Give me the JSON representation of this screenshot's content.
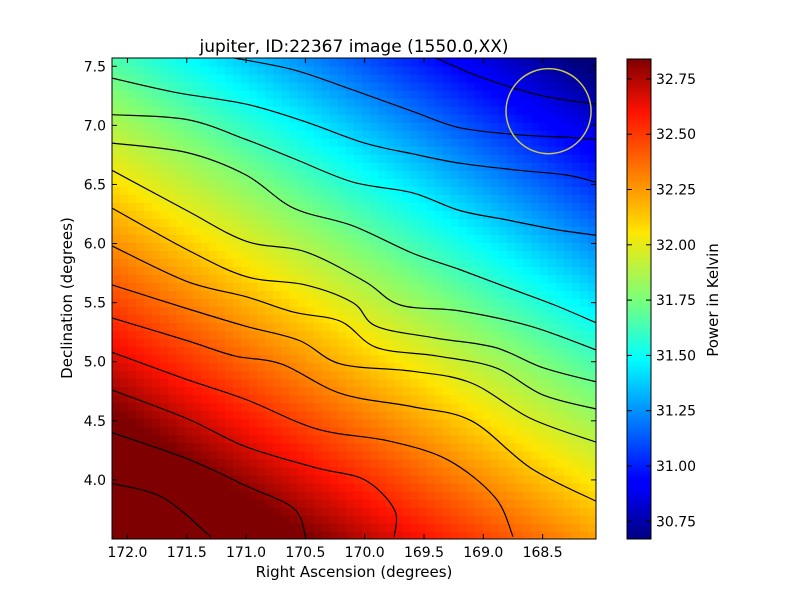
{
  "chart_data": {
    "type": "heatmap",
    "title": "jupiter, ID:22367 image (1550.0,XX)",
    "xlabel": "Right Ascension (degrees)",
    "ylabel": "Declination (degrees)",
    "colorbar_label": "Power in Kelvin",
    "colormap": "jet",
    "xlim": [
      172.13,
      168.05
    ],
    "ylim": [
      3.5,
      7.57
    ],
    "x_ticks": [
      172.0,
      171.5,
      171.0,
      170.5,
      170.0,
      169.5,
      169.0,
      168.5
    ],
    "x_tick_labels": [
      "172.0",
      "171.5",
      "171.0",
      "170.5",
      "170.0",
      "169.5",
      "169.0",
      "168.5"
    ],
    "y_ticks": [
      4.0,
      4.5,
      5.0,
      5.5,
      6.0,
      6.5,
      7.0,
      7.5
    ],
    "y_tick_labels": [
      "4.0",
      "4.5",
      "5.0",
      "5.5",
      "6.0",
      "6.5",
      "7.0",
      "7.5"
    ],
    "colorbar_range": [
      30.67,
      32.84
    ],
    "colorbar_ticks": [
      30.75,
      31.0,
      31.25,
      31.5,
      31.75,
      32.0,
      32.25,
      32.5,
      32.75
    ],
    "colorbar_tick_labels": [
      "30.75",
      "31.00",
      "31.25",
      "31.50",
      "31.75",
      "32.00",
      "32.25",
      "32.50",
      "32.75"
    ],
    "contour_lines": [
      {
        "points": [
          [
            172.13,
            3.97
          ],
          [
            171.7,
            3.85
          ],
          [
            171.3,
            3.52
          ]
        ]
      },
      {
        "points": [
          [
            172.13,
            4.4
          ],
          [
            171.5,
            4.18
          ],
          [
            171.0,
            3.95
          ],
          [
            170.6,
            3.76
          ],
          [
            170.5,
            3.53
          ]
        ]
      },
      {
        "points": [
          [
            172.13,
            4.76
          ],
          [
            171.5,
            4.52
          ],
          [
            171.0,
            4.28
          ],
          [
            170.4,
            4.1
          ],
          [
            170.0,
            4.0
          ],
          [
            169.75,
            3.75
          ],
          [
            169.75,
            3.52
          ]
        ]
      },
      {
        "points": [
          [
            172.13,
            5.08
          ],
          [
            171.5,
            4.85
          ],
          [
            171.0,
            4.68
          ],
          [
            170.4,
            4.43
          ],
          [
            169.8,
            4.33
          ],
          [
            169.3,
            4.17
          ],
          [
            168.9,
            3.85
          ],
          [
            168.75,
            3.52
          ]
        ]
      },
      {
        "points": [
          [
            172.13,
            5.37
          ],
          [
            171.5,
            5.18
          ],
          [
            171.1,
            5.05
          ],
          [
            170.7,
            4.98
          ],
          [
            170.2,
            4.73
          ],
          [
            169.6,
            4.62
          ],
          [
            169.1,
            4.5
          ],
          [
            168.6,
            4.1
          ],
          [
            168.05,
            3.82
          ]
        ]
      },
      {
        "points": [
          [
            172.13,
            5.65
          ],
          [
            171.5,
            5.45
          ],
          [
            171.0,
            5.3
          ],
          [
            170.55,
            5.18
          ],
          [
            170.2,
            4.98
          ],
          [
            169.6,
            4.92
          ],
          [
            169.1,
            4.82
          ],
          [
            168.6,
            4.52
          ],
          [
            168.05,
            4.32
          ]
        ]
      },
      {
        "points": [
          [
            172.13,
            5.98
          ],
          [
            171.5,
            5.68
          ],
          [
            171.0,
            5.55
          ],
          [
            170.6,
            5.42
          ],
          [
            170.2,
            5.34
          ],
          [
            169.9,
            5.12
          ],
          [
            169.4,
            5.05
          ],
          [
            168.9,
            4.95
          ],
          [
            168.5,
            4.72
          ],
          [
            168.05,
            4.6
          ]
        ]
      },
      {
        "points": [
          [
            172.13,
            6.3
          ],
          [
            171.5,
            5.95
          ],
          [
            171.0,
            5.72
          ],
          [
            170.5,
            5.65
          ],
          [
            170.1,
            5.5
          ],
          [
            169.9,
            5.3
          ],
          [
            169.4,
            5.2
          ],
          [
            168.9,
            5.12
          ],
          [
            168.5,
            4.95
          ],
          [
            168.05,
            4.83
          ]
        ]
      },
      {
        "points": [
          [
            172.13,
            6.62
          ],
          [
            171.5,
            6.28
          ],
          [
            171.0,
            6.02
          ],
          [
            170.5,
            5.93
          ],
          [
            170.0,
            5.68
          ],
          [
            169.7,
            5.48
          ],
          [
            169.2,
            5.43
          ],
          [
            168.6,
            5.3
          ],
          [
            168.05,
            5.1
          ]
        ]
      },
      {
        "points": [
          [
            172.13,
            6.85
          ],
          [
            171.5,
            6.77
          ],
          [
            171.0,
            6.58
          ],
          [
            170.6,
            6.3
          ],
          [
            170.1,
            6.15
          ],
          [
            169.6,
            5.92
          ],
          [
            169.2,
            5.78
          ],
          [
            168.8,
            5.63
          ],
          [
            168.4,
            5.48
          ],
          [
            168.05,
            5.33
          ]
        ]
      },
      {
        "points": [
          [
            172.13,
            7.09
          ],
          [
            171.5,
            7.05
          ],
          [
            171.0,
            6.88
          ],
          [
            170.6,
            6.72
          ],
          [
            170.1,
            6.52
          ],
          [
            169.6,
            6.43
          ],
          [
            169.2,
            6.28
          ],
          [
            168.8,
            6.2
          ],
          [
            168.4,
            6.12
          ],
          [
            168.05,
            6.07
          ]
        ]
      },
      {
        "points": [
          [
            172.13,
            7.4
          ],
          [
            171.6,
            7.28
          ],
          [
            171.0,
            7.18
          ],
          [
            170.5,
            7.03
          ],
          [
            170.0,
            6.85
          ],
          [
            169.6,
            6.76
          ],
          [
            169.2,
            6.68
          ],
          [
            168.7,
            6.62
          ],
          [
            168.3,
            6.58
          ],
          [
            168.05,
            6.52
          ]
        ]
      },
      {
        "points": [
          [
            171.1,
            7.57
          ],
          [
            170.6,
            7.47
          ],
          [
            170.1,
            7.3
          ],
          [
            169.6,
            7.12
          ],
          [
            169.2,
            6.98
          ],
          [
            168.7,
            6.92
          ],
          [
            168.3,
            6.9
          ],
          [
            168.05,
            6.88
          ]
        ]
      },
      {
        "points": [
          [
            169.4,
            7.57
          ],
          [
            169.0,
            7.4
          ],
          [
            168.5,
            7.25
          ],
          [
            168.05,
            7.18
          ]
        ]
      }
    ],
    "field_model": {
      "offset": 31.96,
      "grad_ra": 0.255,
      "grad_dec": -0.4,
      "center": [
        170.1,
        5.5
      ]
    },
    "circle": {
      "ra": 168.45,
      "dec": 7.12,
      "radius_deg": 0.36,
      "color": "#c8c850"
    }
  }
}
